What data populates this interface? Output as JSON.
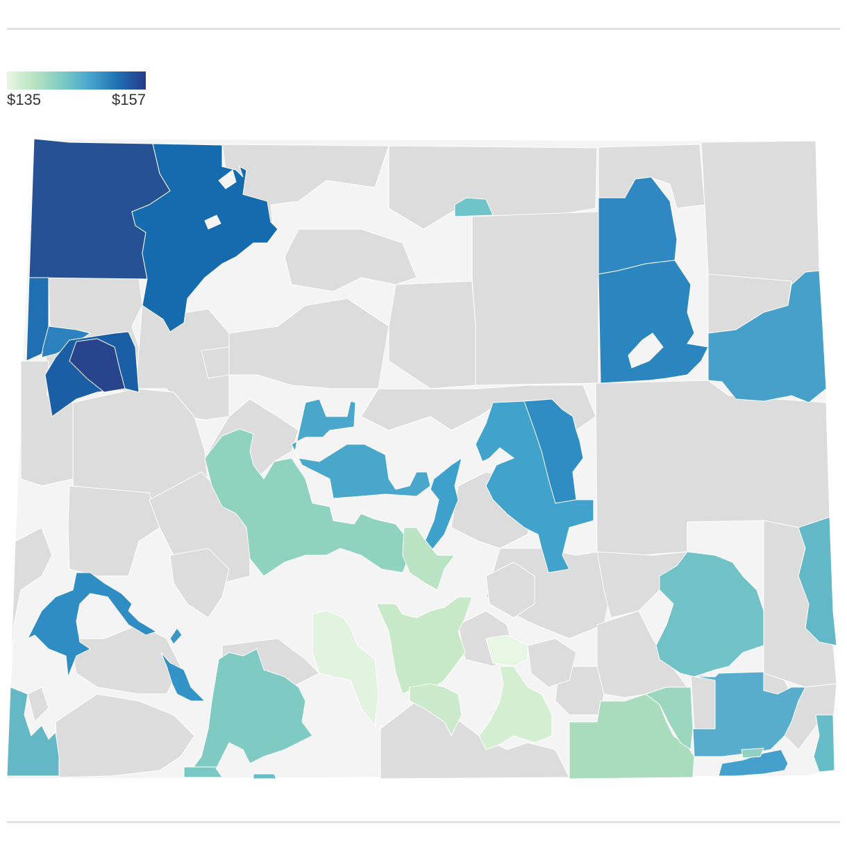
{
  "legend": {
    "min_label": "$135",
    "max_label": "$157",
    "min_value": 135,
    "max_value": 157,
    "gradient_colors": [
      "#e8f6e2",
      "#b7e3c0",
      "#7ccbc4",
      "#47a4cd",
      "#1f6fb2",
      "#253c8a"
    ]
  },
  "colors": {
    "no_data": "#dcdcdc",
    "unpopulated": "#f4f4f4",
    "region_border": "#ffffff",
    "rule": "#e2e2e2"
  }
}
